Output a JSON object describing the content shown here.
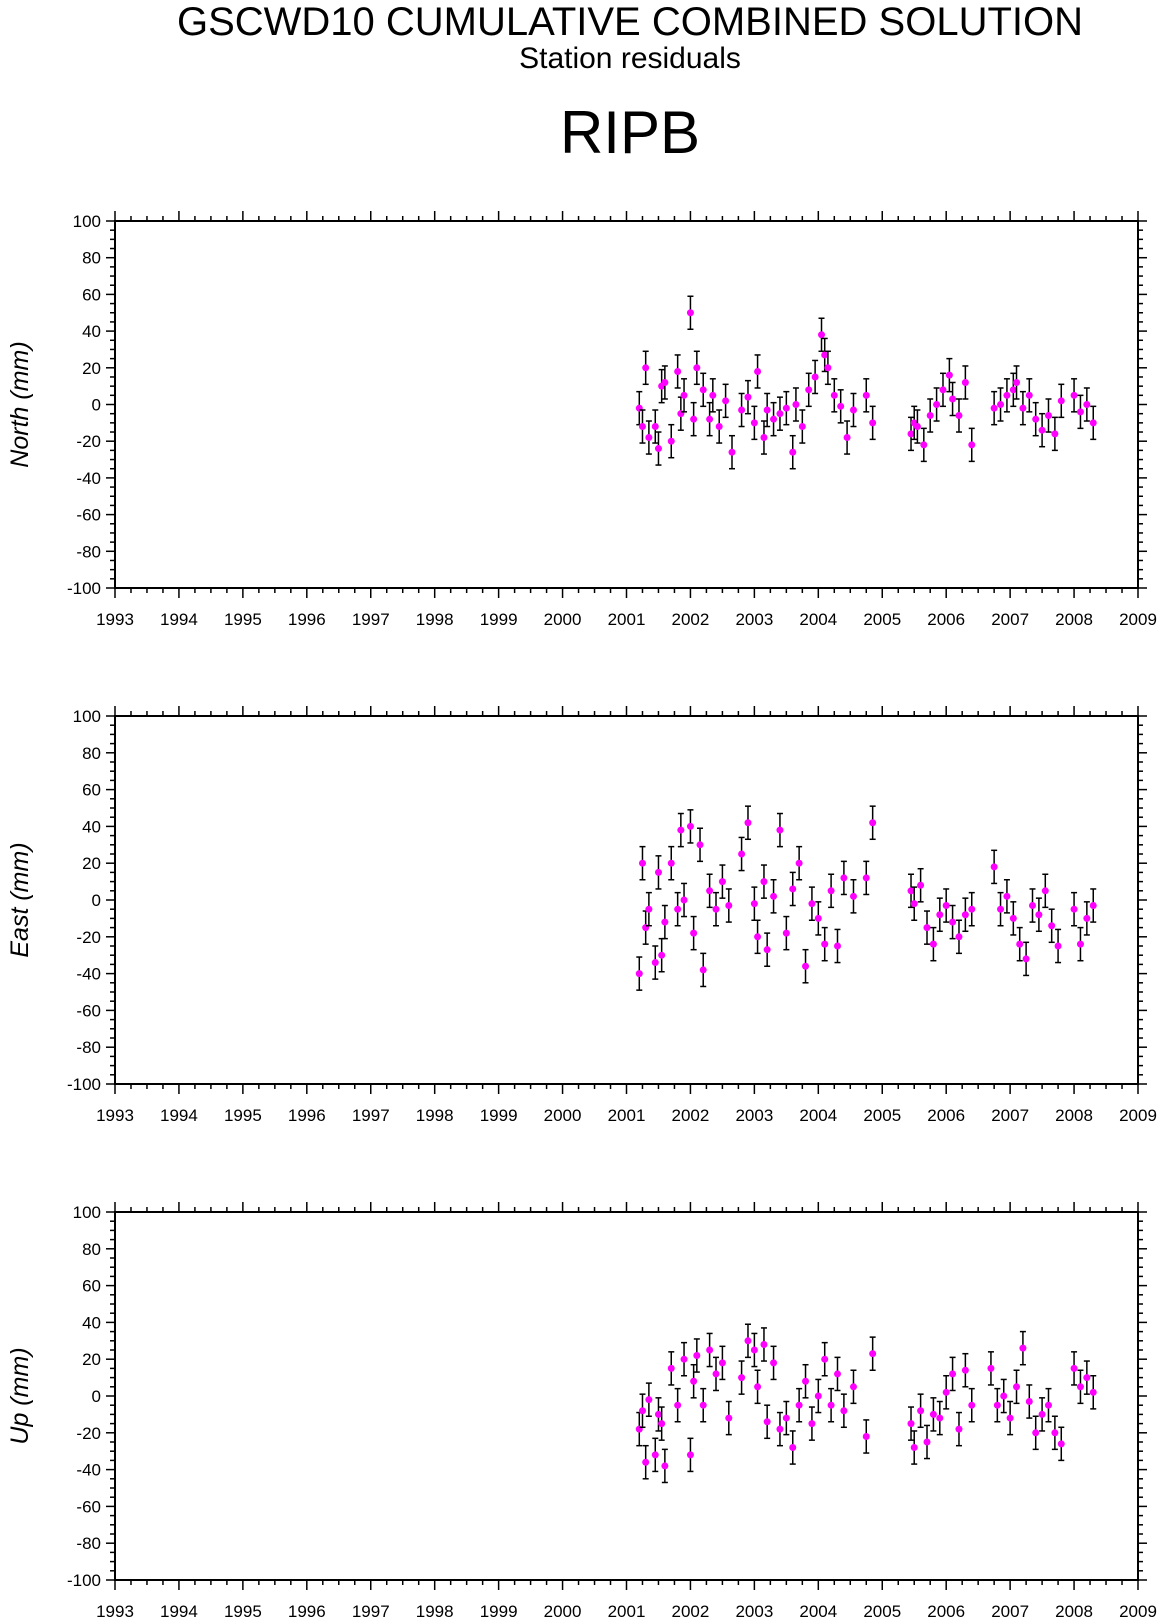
{
  "header": {
    "title": "GSCWD10 CUMULATIVE COMBINED SOLUTION",
    "subtitle": "Station residuals",
    "station": "RIPB"
  },
  "colors": {
    "marker": "#ff00ff",
    "error_bar": "#000000",
    "axes": "#000000"
  },
  "chart_data": [
    {
      "type": "scatter",
      "ylabel": "North (mm)",
      "ylim": [
        -100,
        100
      ],
      "xlim": [
        1993,
        2009
      ],
      "yticks": [
        "100",
        "80",
        "60",
        "40",
        "20",
        "0",
        "-20",
        "-40",
        "-60",
        "-80",
        "-100"
      ],
      "xticks": [
        "1993",
        "1994",
        "1995",
        "1996",
        "1997",
        "1998",
        "1999",
        "2000",
        "2001",
        "2002",
        "2003",
        "2004",
        "2005",
        "2006",
        "2007",
        "2008",
        "2009"
      ],
      "error_bars": true,
      "x": [
        2001.2,
        2001.25,
        2001.3,
        2001.35,
        2001.45,
        2001.5,
        2001.55,
        2001.6,
        2001.7,
        2001.8,
        2001.85,
        2001.9,
        2002.0,
        2002.05,
        2002.1,
        2002.2,
        2002.3,
        2002.35,
        2002.45,
        2002.55,
        2002.65,
        2002.8,
        2002.9,
        2003.0,
        2003.05,
        2003.15,
        2003.2,
        2003.3,
        2003.4,
        2003.5,
        2003.6,
        2003.65,
        2003.75,
        2003.85,
        2003.95,
        2004.05,
        2004.1,
        2004.15,
        2004.25,
        2004.35,
        2004.45,
        2004.55,
        2004.75,
        2004.85,
        2005.45,
        2005.5,
        2005.55,
        2005.65,
        2005.75,
        2005.85,
        2005.95,
        2006.05,
        2006.1,
        2006.2,
        2006.3,
        2006.4,
        2006.75,
        2006.85,
        2006.95,
        2007.05,
        2007.1,
        2007.2,
        2007.3,
        2007.4,
        2007.5,
        2007.6,
        2007.7,
        2007.8,
        2008.0,
        2008.1,
        2008.2,
        2008.3
      ],
      "y": [
        -2,
        -12,
        20,
        -18,
        -12,
        -24,
        10,
        12,
        -20,
        18,
        -5,
        5,
        50,
        -8,
        20,
        8,
        -8,
        5,
        -12,
        2,
        -26,
        -3,
        4,
        -10,
        18,
        -18,
        -3,
        -8,
        -5,
        -2,
        -26,
        0,
        -12,
        8,
        15,
        38,
        27,
        20,
        5,
        -1,
        -18,
        -3,
        5,
        -10,
        -16,
        -10,
        -12,
        -22,
        -6,
        0,
        8,
        16,
        3,
        -6,
        12,
        -22,
        -2,
        0,
        5,
        8,
        12,
        -2,
        5,
        -8,
        -14,
        -6,
        -16,
        2,
        5,
        -4,
        0,
        -10
      ]
    },
    {
      "type": "scatter",
      "ylabel": "East (mm)",
      "ylim": [
        -100,
        100
      ],
      "xlim": [
        1993,
        2009
      ],
      "yticks": [
        "100",
        "80",
        "60",
        "40",
        "20",
        "0",
        "-20",
        "-40",
        "-60",
        "-80",
        "-100"
      ],
      "xticks": [
        "1993",
        "1994",
        "1995",
        "1996",
        "1997",
        "1998",
        "1999",
        "2000",
        "2001",
        "2002",
        "2003",
        "2004",
        "2005",
        "2006",
        "2007",
        "2008",
        "2009"
      ],
      "error_bars": true,
      "x": [
        2001.2,
        2001.25,
        2001.3,
        2001.35,
        2001.45,
        2001.5,
        2001.55,
        2001.6,
        2001.7,
        2001.8,
        2001.85,
        2001.9,
        2002.0,
        2002.05,
        2002.15,
        2002.2,
        2002.3,
        2002.4,
        2002.5,
        2002.6,
        2002.8,
        2002.9,
        2003.0,
        2003.05,
        2003.15,
        2003.2,
        2003.3,
        2003.4,
        2003.5,
        2003.6,
        2003.7,
        2003.8,
        2003.9,
        2004.0,
        2004.1,
        2004.2,
        2004.3,
        2004.4,
        2004.55,
        2004.75,
        2004.85,
        2005.45,
        2005.5,
        2005.6,
        2005.7,
        2005.8,
        2005.9,
        2006.0,
        2006.1,
        2006.2,
        2006.3,
        2006.4,
        2006.75,
        2006.85,
        2006.95,
        2007.05,
        2007.15,
        2007.25,
        2007.35,
        2007.45,
        2007.55,
        2007.65,
        2007.75,
        2008.0,
        2008.1,
        2008.2,
        2008.3
      ],
      "y": [
        -40,
        20,
        -15,
        -5,
        -34,
        15,
        -30,
        -12,
        20,
        -5,
        38,
        0,
        40,
        -18,
        30,
        -38,
        5,
        -5,
        10,
        -3,
        25,
        42,
        -2,
        -20,
        10,
        -27,
        2,
        38,
        -18,
        6,
        20,
        -36,
        -2,
        -10,
        -24,
        5,
        -25,
        12,
        2,
        12,
        42,
        5,
        -2,
        8,
        -15,
        -24,
        -8,
        -3,
        -12,
        -20,
        -8,
        -5,
        18,
        -5,
        2,
        -10,
        -24,
        -32,
        -3,
        -8,
        5,
        -14,
        -25,
        -5,
        -24,
        -10,
        -3
      ]
    },
    {
      "type": "scatter",
      "ylabel": "Up (mm)",
      "ylim": [
        -100,
        100
      ],
      "xlim": [
        1993,
        2009
      ],
      "yticks": [
        "100",
        "80",
        "60",
        "40",
        "20",
        "0",
        "-20",
        "-40",
        "-60",
        "-80",
        "-100"
      ],
      "xticks": [
        "1993",
        "1994",
        "1995",
        "1996",
        "1997",
        "1998",
        "1999",
        "2000",
        "2001",
        "2002",
        "2003",
        "2004",
        "2005",
        "2006",
        "2007",
        "2008",
        "2009"
      ],
      "error_bars": true,
      "x": [
        2001.2,
        2001.25,
        2001.3,
        2001.35,
        2001.45,
        2001.5,
        2001.55,
        2001.6,
        2001.7,
        2001.8,
        2001.9,
        2002.0,
        2002.05,
        2002.1,
        2002.2,
        2002.3,
        2002.4,
        2002.5,
        2002.6,
        2002.8,
        2002.9,
        2003.0,
        2003.05,
        2003.15,
        2003.2,
        2003.3,
        2003.4,
        2003.5,
        2003.6,
        2003.7,
        2003.8,
        2003.9,
        2004.0,
        2004.1,
        2004.2,
        2004.3,
        2004.4,
        2004.55,
        2004.75,
        2004.85,
        2005.45,
        2005.5,
        2005.6,
        2005.7,
        2005.8,
        2005.9,
        2006.0,
        2006.1,
        2006.2,
        2006.3,
        2006.4,
        2006.7,
        2006.8,
        2006.9,
        2007.0,
        2007.1,
        2007.2,
        2007.3,
        2007.4,
        2007.5,
        2007.6,
        2007.7,
        2007.8,
        2008.0,
        2008.1,
        2008.2,
        2008.3
      ],
      "y": [
        -18,
        -8,
        -36,
        -2,
        -32,
        -10,
        -15,
        -38,
        15,
        -5,
        20,
        -32,
        8,
        22,
        -5,
        25,
        12,
        18,
        -12,
        10,
        30,
        25,
        5,
        28,
        -14,
        18,
        -18,
        -12,
        -28,
        -5,
        8,
        -15,
        0,
        20,
        -5,
        12,
        -8,
        5,
        -22,
        23,
        -15,
        -28,
        -8,
        -25,
        -10,
        -12,
        2,
        12,
        -18,
        14,
        -5,
        15,
        -5,
        0,
        -12,
        5,
        26,
        -3,
        -20,
        -10,
        -5,
        -20,
        -26,
        15,
        5,
        10,
        2
      ]
    }
  ]
}
